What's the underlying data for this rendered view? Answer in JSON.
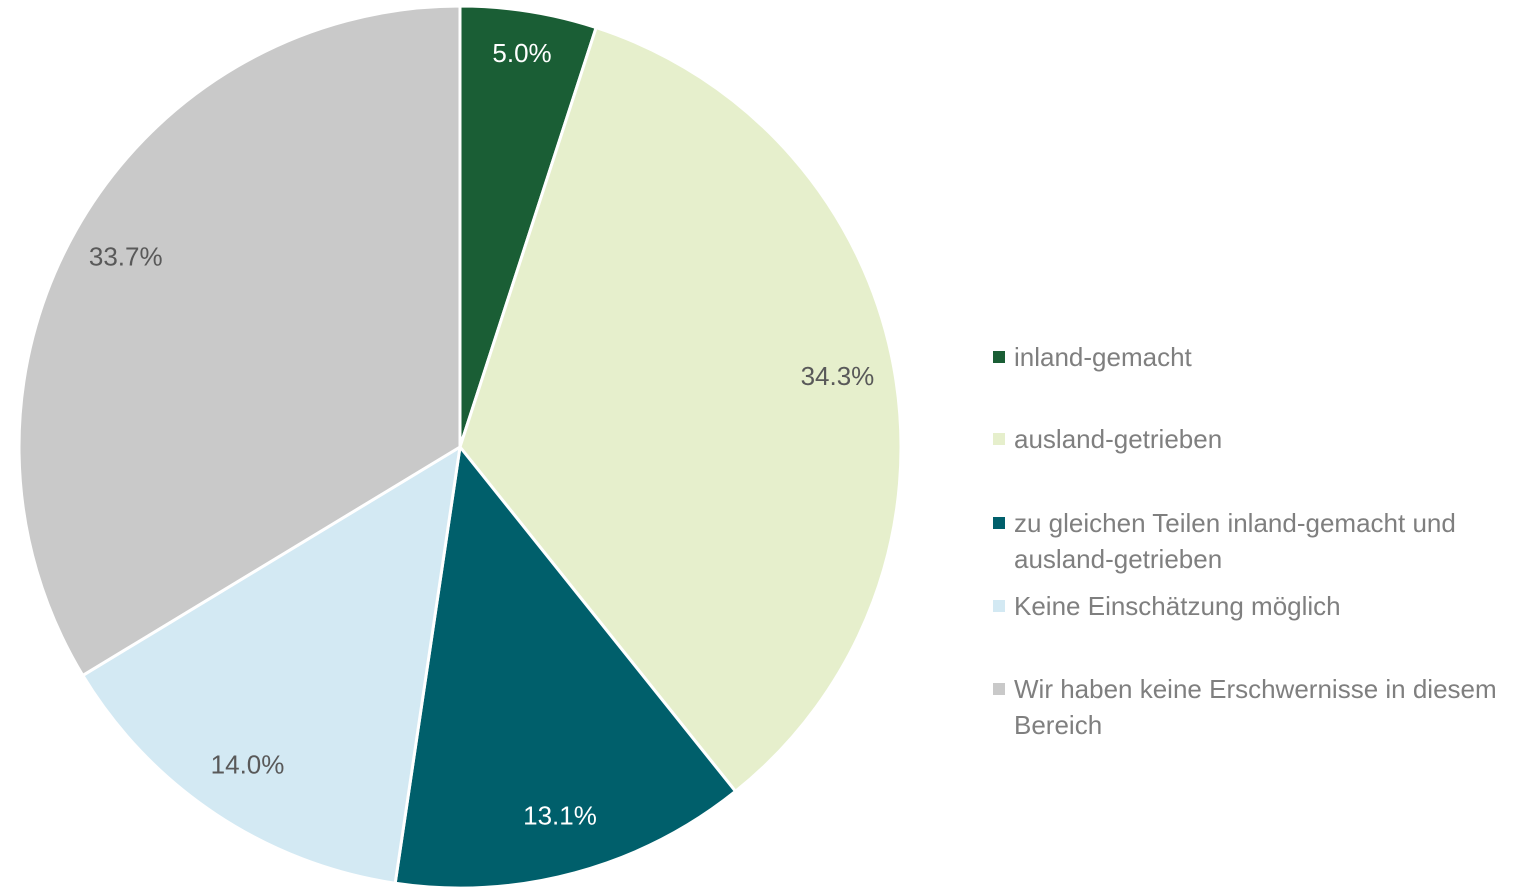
{
  "chart_data": {
    "type": "pie",
    "categories": [
      "inland-gemacht",
      "ausland-getrieben",
      "zu gleichen Teilen inland-gemacht und ausland-getrieben",
      "Keine Einschätzung möglich",
      "Wir haben keine Erschwernisse in diesem Bereich"
    ],
    "values": [
      5.0,
      34.3,
      13.1,
      14.0,
      33.7
    ],
    "value_labels": [
      "5.0%",
      "34.3%",
      "13.1%",
      "14.0%",
      "33.7%"
    ],
    "colors": [
      "#1a5e35",
      "#e6efcc",
      "#005f6b",
      "#d3e9f3",
      "#c9c9c9"
    ],
    "legend": "right"
  }
}
